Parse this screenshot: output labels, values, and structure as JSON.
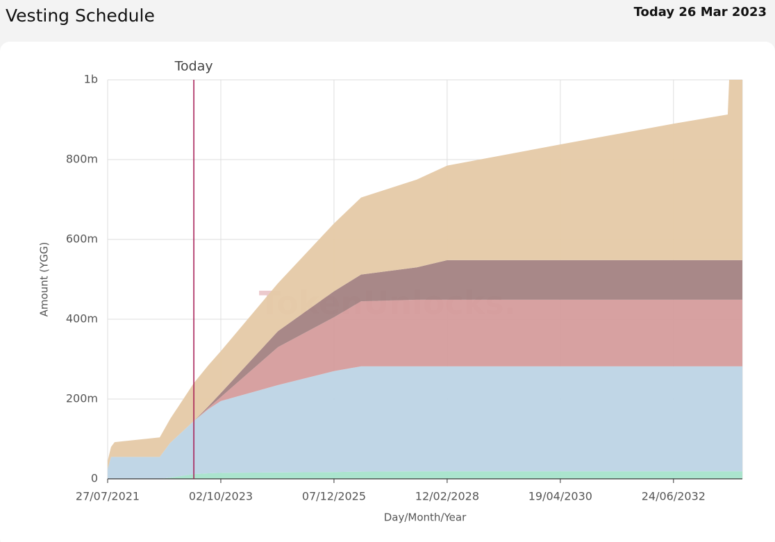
{
  "header": {
    "title": "Vesting Schedule",
    "today": "Today 26 Mar 2023"
  },
  "chart_data": {
    "type": "stacked_area",
    "watermark": "TokenUnlocks.",
    "x_label": "Day/Month/Year",
    "y_label": "Amount (YGG)",
    "annotation": {
      "x": "2023-03-26",
      "label": "Today",
      "color": "#a3154f"
    },
    "x": [
      "2021-07-27",
      "2021-08-20",
      "2021-09-14",
      "2022-07-29",
      "2022-10-10",
      "2023-03-26",
      "2023-07-07",
      "2023-10-02",
      "2024-11-07",
      "2025-12-07",
      "2026-06-16",
      "2027-07-13",
      "2028-02-12",
      "2030-04-19",
      "2032-06-24",
      "2033-07-11",
      "2033-07-21",
      "2033-10-22"
    ],
    "xlim": [
      "2021-07-27",
      "2033-10-22"
    ],
    "xticks": [
      {
        "value": "2021-07-27",
        "label": "27/07/2021"
      },
      {
        "value": "2023-10-02",
        "label": "02/10/2023"
      },
      {
        "value": "2025-12-07",
        "label": "07/12/2025"
      },
      {
        "value": "2028-02-12",
        "label": "12/02/2028"
      },
      {
        "value": "2030-04-19",
        "label": "19/04/2030"
      },
      {
        "value": "2032-06-24",
        "label": "24/06/2032"
      }
    ],
    "ylim": [
      0,
      1000000000
    ],
    "yticks": [
      0,
      {
        "value": 200000000,
        "label": "200m"
      },
      {
        "value": 400000000,
        "label": "400m"
      },
      {
        "value": 600000000,
        "label": "600m"
      },
      {
        "value": 800000000,
        "label": "800m"
      },
      {
        "value": 1000000000,
        "label": "1b"
      }
    ],
    "grid": true,
    "series": [
      {
        "color": "#a6e3cb",
        "values": [
          0,
          0,
          0,
          0,
          3000000,
          12000000,
          14000000,
          15000000,
          16000000,
          17000000,
          18000000,
          19000000,
          19000000,
          19000000,
          19000000,
          19000000,
          19000000,
          19000000
        ]
      },
      {
        "color": "#bdd4e5",
        "values": [
          25000000,
          55000000,
          55000000,
          55000000,
          87000000,
          133000000,
          161000000,
          180000000,
          219000000,
          253000000,
          264000000,
          263000000,
          263000000,
          263000000,
          263000000,
          263000000,
          263000000,
          263000000
        ]
      },
      {
        "color": "#d59c9c",
        "values": [
          0,
          0,
          0,
          0,
          0,
          0,
          3000000,
          10000000,
          95000000,
          135000000,
          163000000,
          167000000,
          167000000,
          167000000,
          167000000,
          167000000,
          167000000,
          167000000
        ]
      },
      {
        "color": "#a38282",
        "values": [
          0,
          0,
          0,
          0,
          0,
          0,
          4000000,
          10000000,
          40000000,
          65000000,
          67000000,
          81000000,
          99000000,
          99000000,
          99000000,
          99000000,
          99000000,
          99000000
        ]
      },
      {
        "color": "#e5c9a6",
        "values": [
          20000000,
          25000000,
          37000000,
          49000000,
          60000000,
          95000000,
          103000000,
          105000000,
          120000000,
          170000000,
          193000000,
          220000000,
          237000000,
          290000000,
          342000000,
          365000000,
          452000000,
          452000000
        ]
      }
    ]
  }
}
